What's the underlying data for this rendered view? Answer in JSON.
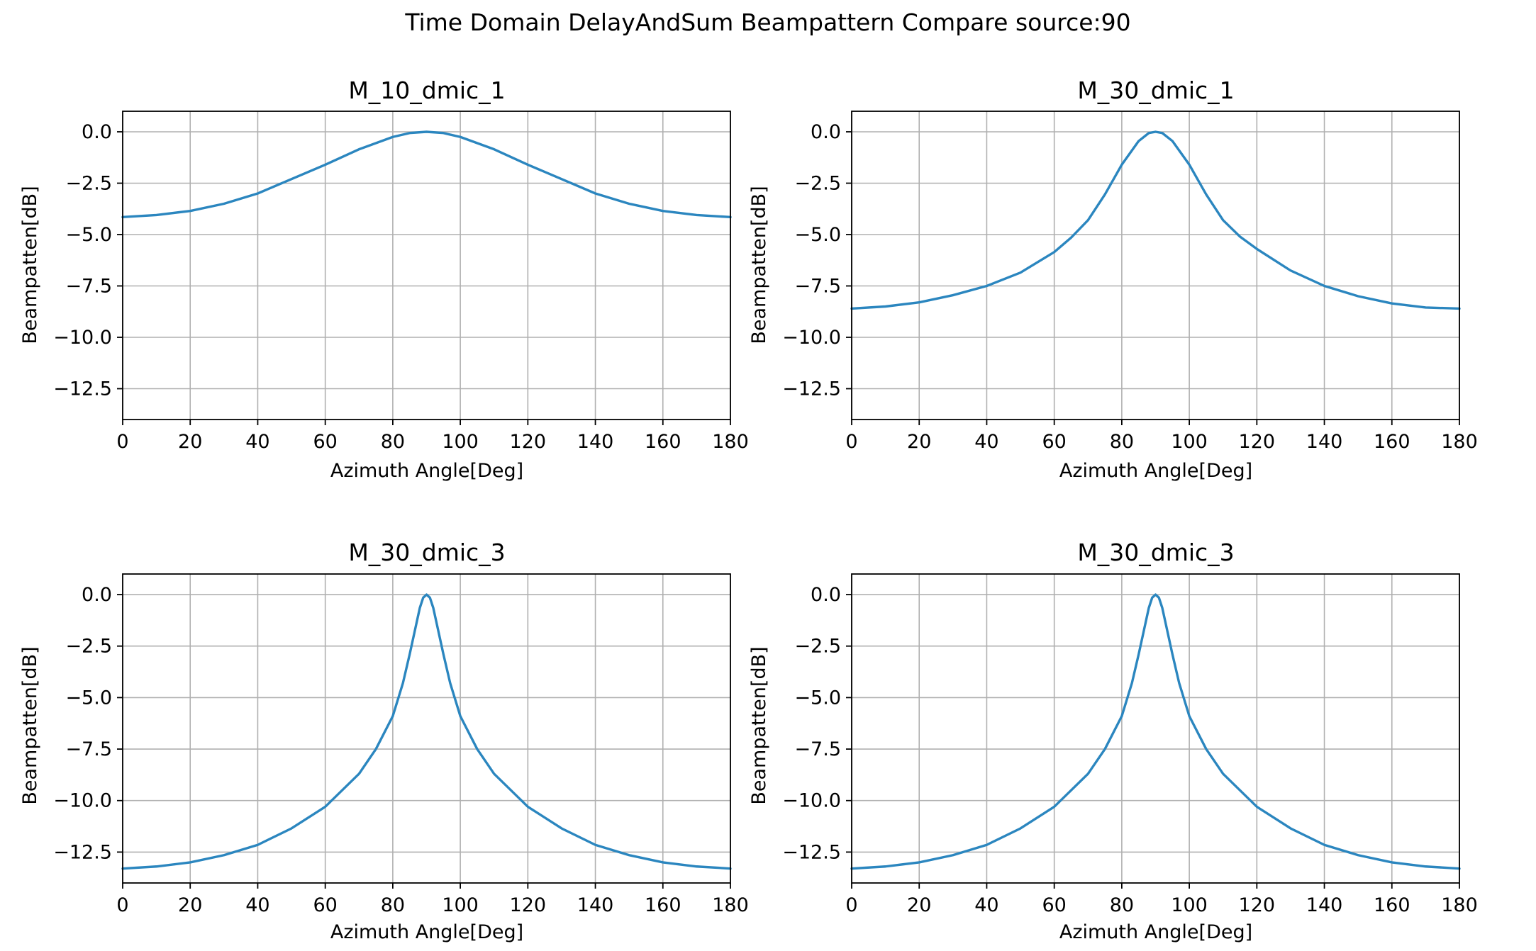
{
  "figure": {
    "suptitle": "Time Domain DelayAndSum  Beampattern Compare source:90",
    "grid": true,
    "line_color": "#2b86bf",
    "grid_color": "#b0b0b0"
  },
  "chart_data": [
    {
      "type": "line",
      "title": "M_10_dmic_1",
      "xlabel": "Azimuth Angle[Deg]",
      "ylabel": "Beampatten[dB]",
      "xlim": [
        0,
        180
      ],
      "ylim": [
        -14,
        1
      ],
      "xticks": [
        0,
        20,
        40,
        60,
        80,
        100,
        120,
        140,
        160,
        180
      ],
      "yticks": [
        0.0,
        -2.5,
        -5.0,
        -7.5,
        -10.0,
        -12.5
      ],
      "ytick_labels": [
        "0.0",
        "−2.5",
        "−5.0",
        "−7.5",
        "−10.0",
        "−12.5"
      ],
      "series": [
        {
          "x": [
            0,
            10,
            20,
            30,
            40,
            50,
            60,
            70,
            80,
            85,
            90,
            95,
            100,
            110,
            120,
            130,
            140,
            150,
            160,
            170,
            180
          ],
          "y": [
            -4.15,
            -4.05,
            -3.85,
            -3.5,
            -3.0,
            -2.3,
            -1.6,
            -0.85,
            -0.25,
            -0.06,
            0.0,
            -0.06,
            -0.25,
            -0.85,
            -1.6,
            -2.3,
            -3.0,
            -3.5,
            -3.85,
            -4.05,
            -4.15
          ]
        }
      ]
    },
    {
      "type": "line",
      "title": "M_30_dmic_1",
      "xlabel": "Azimuth Angle[Deg]",
      "ylabel": "Beampatten[dB]",
      "xlim": [
        0,
        180
      ],
      "ylim": [
        -14,
        1
      ],
      "xticks": [
        0,
        20,
        40,
        60,
        80,
        100,
        120,
        140,
        160,
        180
      ],
      "yticks": [
        0.0,
        -2.5,
        -5.0,
        -7.5,
        -10.0,
        -12.5
      ],
      "ytick_labels": [
        "0.0",
        "−2.5",
        "−5.0",
        "−7.5",
        "−10.0",
        "−12.5"
      ],
      "series": [
        {
          "x": [
            0,
            10,
            20,
            30,
            40,
            50,
            60,
            65,
            70,
            75,
            80,
            85,
            88,
            90,
            92,
            95,
            100,
            105,
            110,
            115,
            120,
            130,
            140,
            150,
            160,
            170,
            180
          ],
          "y": [
            -8.6,
            -8.5,
            -8.3,
            -7.95,
            -7.5,
            -6.85,
            -5.85,
            -5.15,
            -4.3,
            -3.05,
            -1.6,
            -0.45,
            -0.06,
            0.0,
            -0.06,
            -0.45,
            -1.6,
            -3.05,
            -4.3,
            -5.1,
            -5.7,
            -6.75,
            -7.5,
            -8.0,
            -8.35,
            -8.55,
            -8.6
          ]
        }
      ]
    },
    {
      "type": "line",
      "title": "M_30_dmic_3",
      "xlabel": "Azimuth Angle[Deg]",
      "ylabel": "Beampatten[dB]",
      "xlim": [
        0,
        180
      ],
      "ylim": [
        -14,
        1
      ],
      "xticks": [
        0,
        20,
        40,
        60,
        80,
        100,
        120,
        140,
        160,
        180
      ],
      "yticks": [
        0.0,
        -2.5,
        -5.0,
        -7.5,
        -10.0,
        -12.5
      ],
      "ytick_labels": [
        "0.0",
        "−2.5",
        "−5.0",
        "−7.5",
        "−10.0",
        "−12.5"
      ],
      "series": [
        {
          "x": [
            0,
            10,
            20,
            30,
            40,
            50,
            60,
            70,
            75,
            80,
            83,
            85,
            87,
            88,
            89,
            90,
            91,
            92,
            93,
            95,
            97,
            100,
            105,
            110,
            120,
            130,
            140,
            150,
            160,
            170,
            180
          ],
          "y": [
            -13.3,
            -13.2,
            -13.0,
            -12.65,
            -12.15,
            -11.35,
            -10.3,
            -8.7,
            -7.5,
            -5.9,
            -4.3,
            -2.9,
            -1.4,
            -0.65,
            -0.15,
            0.0,
            -0.15,
            -0.65,
            -1.4,
            -2.9,
            -4.3,
            -5.9,
            -7.5,
            -8.7,
            -10.3,
            -11.35,
            -12.15,
            -12.65,
            -13.0,
            -13.2,
            -13.3
          ]
        }
      ]
    },
    {
      "type": "line",
      "title": "M_30_dmic_3",
      "xlabel": "Azimuth Angle[Deg]",
      "ylabel": "Beampatten[dB]",
      "xlim": [
        0,
        180
      ],
      "ylim": [
        -14,
        1
      ],
      "xticks": [
        0,
        20,
        40,
        60,
        80,
        100,
        120,
        140,
        160,
        180
      ],
      "yticks": [
        0.0,
        -2.5,
        -5.0,
        -7.5,
        -10.0,
        -12.5
      ],
      "ytick_labels": [
        "0.0",
        "−2.5",
        "−5.0",
        "−7.5",
        "−10.0",
        "−12.5"
      ],
      "series": [
        {
          "x": [
            0,
            10,
            20,
            30,
            40,
            50,
            60,
            70,
            75,
            80,
            83,
            85,
            87,
            88,
            89,
            90,
            91,
            92,
            93,
            95,
            97,
            100,
            105,
            110,
            120,
            130,
            140,
            150,
            160,
            170,
            180
          ],
          "y": [
            -13.3,
            -13.2,
            -13.0,
            -12.65,
            -12.15,
            -11.35,
            -10.3,
            -8.7,
            -7.5,
            -5.9,
            -4.3,
            -2.9,
            -1.4,
            -0.65,
            -0.15,
            0.0,
            -0.15,
            -0.65,
            -1.4,
            -2.9,
            -4.3,
            -5.9,
            -7.5,
            -8.7,
            -10.3,
            -11.35,
            -12.15,
            -12.65,
            -13.0,
            -13.2,
            -13.3
          ]
        }
      ]
    }
  ]
}
